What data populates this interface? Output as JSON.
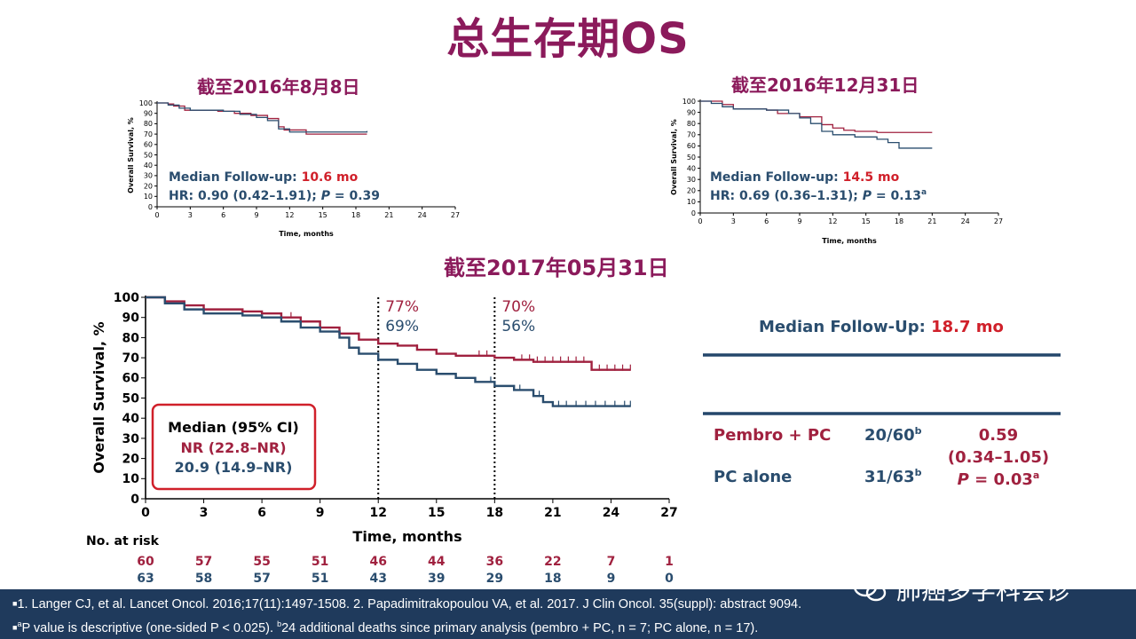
{
  "title": "总生存期OS",
  "chart_data": [
    {
      "type": "line",
      "subtitle": "截至2016年8月8日",
      "xlabel": "Time, months",
      "ylabel": "Overall Survival, %",
      "xticks": [
        0,
        3,
        6,
        9,
        12,
        15,
        18,
        21,
        24,
        27
      ],
      "yticks": [
        0,
        10,
        20,
        30,
        40,
        50,
        60,
        70,
        80,
        90,
        100
      ],
      "xlim": [
        0,
        27
      ],
      "ylim": [
        0,
        100
      ],
      "annotation": {
        "follow_label": "Median Follow-up: ",
        "follow_value": "10.6 mo",
        "hr_text": "HR: 0.90 (0.42–1.91); ",
        "p_label": "P",
        "p_value": " = 0.39",
        "p_sup": ""
      },
      "series": [
        {
          "color": "#a0213f",
          "points": [
            [
              0,
              100
            ],
            [
              1,
              99
            ],
            [
              1.5,
              97
            ],
            [
              2.5,
              93
            ],
            [
              5.5,
              92
            ],
            [
              7,
              90
            ],
            [
              8.5,
              88
            ],
            [
              10,
              85
            ],
            [
              11,
              77
            ],
            [
              11.5,
              74
            ],
            [
              13.5,
              70
            ],
            [
              19,
              70
            ]
          ]
        },
        {
          "color": "#2a4d6e",
          "points": [
            [
              0,
              100
            ],
            [
              1,
              98
            ],
            [
              2,
              95
            ],
            [
              3,
              93
            ],
            [
              6,
              92
            ],
            [
              7.5,
              89
            ],
            [
              9,
              86
            ],
            [
              10,
              83
            ],
            [
              11,
              75
            ],
            [
              12,
              72
            ],
            [
              18,
              72
            ],
            [
              19,
              73
            ]
          ]
        }
      ]
    },
    {
      "type": "line",
      "subtitle": "截至2016年12月31日",
      "xlabel": "Time, months",
      "ylabel": "Overall Survival, %",
      "xticks": [
        0,
        3,
        6,
        9,
        12,
        15,
        18,
        21,
        24,
        27
      ],
      "yticks": [
        0,
        10,
        20,
        30,
        40,
        50,
        60,
        70,
        80,
        90,
        100
      ],
      "xlim": [
        0,
        27
      ],
      "ylim": [
        0,
        100
      ],
      "annotation": {
        "follow_label": "Median Follow-up: ",
        "follow_value": "14.5 mo",
        "hr_text": "HR: 0.69 (0.36–1.31); ",
        "p_label": "P",
        "p_value": " = 0.13",
        "p_sup": "a"
      },
      "series": [
        {
          "color": "#a0213f",
          "points": [
            [
              0,
              100
            ],
            [
              2,
              97
            ],
            [
              3,
              93
            ],
            [
              6,
              92
            ],
            [
              7,
              89
            ],
            [
              9,
              86
            ],
            [
              11,
              79
            ],
            [
              12,
              76
            ],
            [
              13,
              74
            ],
            [
              14,
              73
            ],
            [
              16,
              72
            ],
            [
              21,
              72
            ]
          ]
        },
        {
          "color": "#2a4d6e",
          "points": [
            [
              0,
              100
            ],
            [
              1,
              98
            ],
            [
              2,
              95
            ],
            [
              3,
              93
            ],
            [
              6,
              92
            ],
            [
              8,
              89
            ],
            [
              9,
              85
            ],
            [
              10,
              80
            ],
            [
              11,
              73
            ],
            [
              12,
              70
            ],
            [
              14,
              68
            ],
            [
              16,
              66
            ],
            [
              17,
              63
            ],
            [
              18,
              58
            ],
            [
              21,
              58
            ]
          ]
        }
      ]
    },
    {
      "type": "line",
      "subtitle": "截至2017年05月31日",
      "xlabel": "Time, months",
      "ylabel": "Overall Survival, %",
      "xticks": [
        0,
        3,
        6,
        9,
        12,
        15,
        18,
        21,
        24,
        27
      ],
      "yticks": [
        0,
        10,
        20,
        30,
        40,
        50,
        60,
        70,
        80,
        90,
        100
      ],
      "xlim": [
        0,
        27
      ],
      "ylim": [
        0,
        100
      ],
      "markers": [
        {
          "x": 12,
          "red": "77%",
          "blue": "69%"
        },
        {
          "x": 18,
          "red": "70%",
          "blue": "56%"
        }
      ],
      "legend_box": {
        "heading": "Median (95% CI)",
        "red": "NR (22.8–NR)",
        "blue": "20.9 (14.9–NR)"
      },
      "series": [
        {
          "color": "#a0213f",
          "points": [
            [
              0,
              100
            ],
            [
              1,
              98
            ],
            [
              2,
              96
            ],
            [
              3,
              94
            ],
            [
              5,
              93
            ],
            [
              6,
              92
            ],
            [
              7,
              90
            ],
            [
              8,
              88
            ],
            [
              9,
              85
            ],
            [
              10,
              82
            ],
            [
              11,
              79
            ],
            [
              12,
              77
            ],
            [
              13,
              76
            ],
            [
              14,
              74
            ],
            [
              15,
              72
            ],
            [
              16,
              71
            ],
            [
              18,
              70
            ],
            [
              19,
              69
            ],
            [
              20,
              68
            ],
            [
              23,
              64
            ],
            [
              25,
              64
            ]
          ],
          "censor_x": [
            7.5,
            14,
            17.2,
            17.6,
            19.4,
            19.8,
            20.2,
            20.6,
            21,
            21.4,
            21.8,
            22.2,
            22.6,
            23.4,
            23.8,
            24.2,
            24.6,
            25
          ]
        },
        {
          "color": "#2a4d6e",
          "points": [
            [
              0,
              100
            ],
            [
              1,
              97
            ],
            [
              2,
              94
            ],
            [
              3,
              92
            ],
            [
              5,
              91
            ],
            [
              6,
              90
            ],
            [
              7,
              88
            ],
            [
              8,
              85
            ],
            [
              9,
              83
            ],
            [
              10,
              80
            ],
            [
              10.5,
              75
            ],
            [
              11,
              72
            ],
            [
              12,
              69
            ],
            [
              13,
              67
            ],
            [
              14,
              64
            ],
            [
              15,
              62
            ],
            [
              16,
              60
            ],
            [
              17,
              58
            ],
            [
              18,
              56
            ],
            [
              19,
              54
            ],
            [
              20,
              51
            ],
            [
              20.5,
              48
            ],
            [
              21,
              46
            ],
            [
              25,
              46
            ]
          ],
          "censor_x": [
            17.8,
            19.3,
            20.3,
            21.3,
            21.7,
            22.2,
            22.7,
            23.2,
            23.7,
            24.2,
            24.7,
            25
          ]
        }
      ],
      "risk_table": {
        "label": "No. at risk",
        "times": [
          0,
          3,
          6,
          9,
          12,
          15,
          18,
          21,
          24,
          27
        ],
        "red": [
          "60",
          "57",
          "55",
          "51",
          "46",
          "44",
          "36",
          "22",
          "7",
          "1"
        ],
        "blue": [
          "63",
          "58",
          "57",
          "51",
          "43",
          "39",
          "29",
          "18",
          "9",
          "0"
        ]
      }
    }
  ],
  "summary": {
    "followup_label": "Median Follow-Up:",
    "followup_value": "18.7 mo",
    "rows": [
      {
        "arm": "Pembro + PC",
        "events": "20/60",
        "sup": "b"
      },
      {
        "arm": "PC alone",
        "events": "31/63",
        "sup": "b"
      }
    ],
    "hr_value": "0.59",
    "hr_ci": "(0.34–1.05)",
    "p_label": "P",
    "p_value": " = 0.03",
    "p_sup": "a"
  },
  "footer": {
    "line1": "1. Langer CJ, et al. Lancet Oncol. 2016;17(11):1497-1508. 2. Papadimitrakopoulou VA, et al. 2017. J Clin Oncol. 35(suppl): abstract 9094.",
    "line2_sup_a": "a",
    "line2_mid": "P value is descriptive (one-sided P < 0.025). ",
    "line2_sup_b": "b",
    "line2_end": "24 additional deaths since primary analysis (pembro + PC, n = 7; PC alone, n = 17)."
  },
  "watermark": "肺癌多学科会诊",
  "colors": {
    "red": "#a0213f",
    "blue": "#2a4d6e",
    "accent_red": "#d0202a",
    "title": "#8b1a5b",
    "footer_bg": "#1f3a5c",
    "summary_rule": "#24476b"
  }
}
